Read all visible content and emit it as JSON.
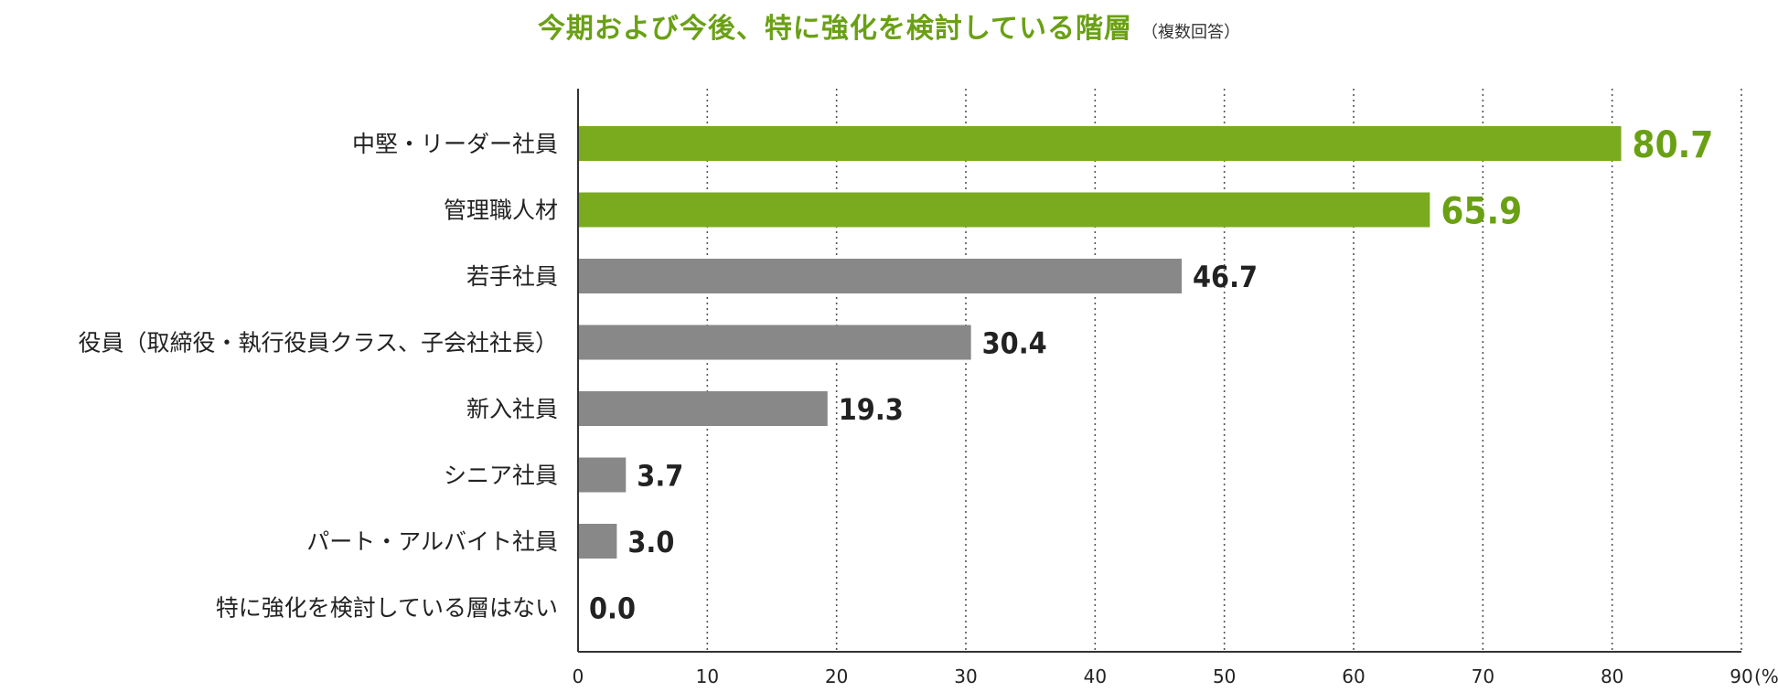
{
  "chart_data": {
    "type": "bar",
    "orientation": "horizontal",
    "title": "今期および今後、特に強化を検討している階層",
    "subtitle": "（複数回答）",
    "unit": "(%)",
    "xlim": [
      0,
      90
    ],
    "x_ticks": [
      "0",
      "10",
      "20",
      "30",
      "40",
      "50",
      "60",
      "70",
      "80",
      "90"
    ],
    "grid": true,
    "categories": [
      "中堅・リーダー社員",
      "管理職人材",
      "若手社員",
      "役員（取締役・執行役員クラス、子会社社長）",
      "新入社員",
      "シニア社員",
      "パート・アルバイト社員",
      "特に強化を検討している層はない"
    ],
    "values": [
      80.7,
      65.9,
      46.7,
      30.4,
      19.3,
      3.7,
      3.0,
      0.0
    ],
    "value_labels": [
      "80.7",
      "65.9",
      "46.7",
      "30.4",
      "19.3",
      "3.7",
      "3.0",
      "0.0"
    ],
    "highlight_count": 2,
    "colors": {
      "highlight": "#7aab1e",
      "highlight_label": "#6aa014",
      "default": "#888888",
      "default_label": "#222222"
    }
  }
}
